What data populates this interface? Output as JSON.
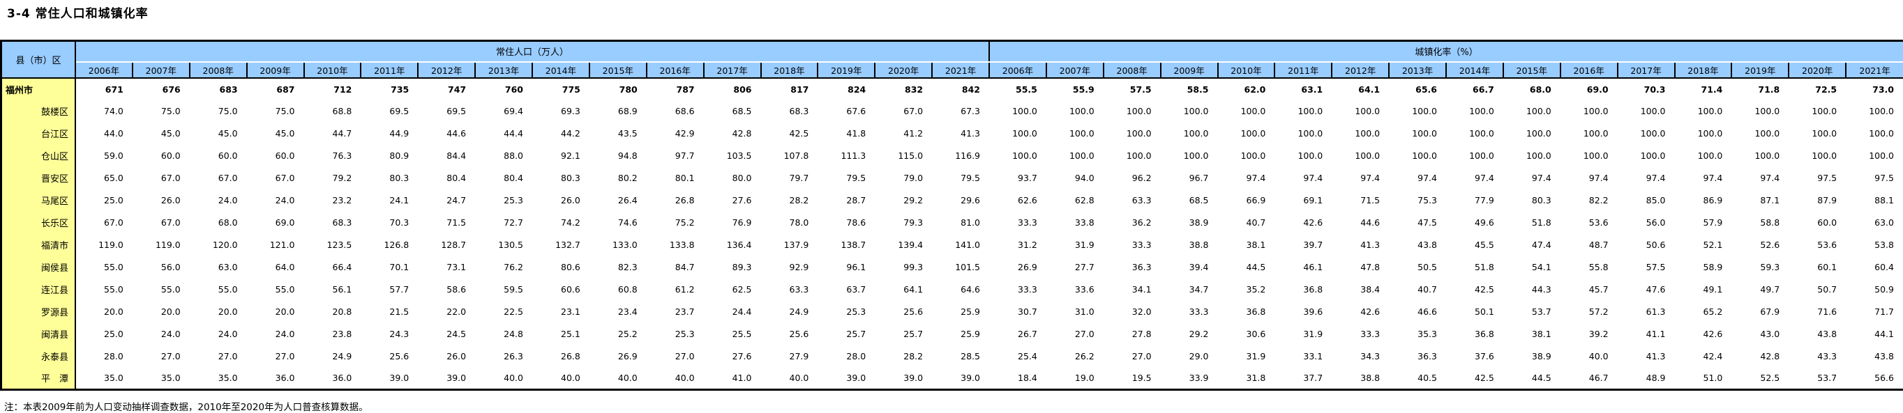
{
  "title": "3-4  常住人口和城镇化率",
  "footnote": "注：本表2009年前为人口变动抽样调查数据，2010年至2020年为人口普查核算数据。",
  "table": {
    "corner_header": "县（市）区",
    "group_headers": [
      "常住人口（万人）",
      "城镇化率（%）"
    ],
    "years": [
      "2006年",
      "2007年",
      "2008年",
      "2009年",
      "2010年",
      "2011年",
      "2012年",
      "2013年",
      "2014年",
      "2015年",
      "2016年",
      "2017年",
      "2018年",
      "2019年",
      "2020年",
      "2021年"
    ],
    "colors": {
      "header_bg": "#99CCFF",
      "label_bg": "#FFFF99",
      "border": "#000000"
    },
    "rows": [
      {
        "label": "福州市",
        "emphasis": true,
        "population": [
          "671",
          "676",
          "683",
          "687",
          "712",
          "735",
          "747",
          "760",
          "775",
          "780",
          "787",
          "806",
          "817",
          "824",
          "832",
          "842"
        ],
        "urbanization": [
          "55.5",
          "55.9",
          "57.5",
          "58.5",
          "62.0",
          "63.1",
          "64.1",
          "65.6",
          "66.7",
          "68.0",
          "69.0",
          "70.3",
          "71.4",
          "71.8",
          "72.5",
          "73.0"
        ]
      },
      {
        "label": "鼓楼区",
        "emphasis": false,
        "population": [
          "74.0",
          "75.0",
          "75.0",
          "75.0",
          "68.8",
          "69.5",
          "69.5",
          "69.4",
          "69.3",
          "68.9",
          "68.6",
          "68.5",
          "68.3",
          "67.6",
          "67.0",
          "67.3"
        ],
        "urbanization": [
          "100.0",
          "100.0",
          "100.0",
          "100.0",
          "100.0",
          "100.0",
          "100.0",
          "100.0",
          "100.0",
          "100.0",
          "100.0",
          "100.0",
          "100.0",
          "100.0",
          "100.0",
          "100.0"
        ]
      },
      {
        "label": "台江区",
        "emphasis": false,
        "population": [
          "44.0",
          "45.0",
          "45.0",
          "45.0",
          "44.7",
          "44.9",
          "44.6",
          "44.4",
          "44.2",
          "43.5",
          "42.9",
          "42.8",
          "42.5",
          "41.8",
          "41.2",
          "41.3"
        ],
        "urbanization": [
          "100.0",
          "100.0",
          "100.0",
          "100.0",
          "100.0",
          "100.0",
          "100.0",
          "100.0",
          "100.0",
          "100.0",
          "100.0",
          "100.0",
          "100.0",
          "100.0",
          "100.0",
          "100.0"
        ]
      },
      {
        "label": "仓山区",
        "emphasis": false,
        "population": [
          "59.0",
          "60.0",
          "60.0",
          "60.0",
          "76.3",
          "80.9",
          "84.4",
          "88.0",
          "92.1",
          "94.8",
          "97.7",
          "103.5",
          "107.8",
          "111.3",
          "115.0",
          "116.9"
        ],
        "urbanization": [
          "100.0",
          "100.0",
          "100.0",
          "100.0",
          "100.0",
          "100.0",
          "100.0",
          "100.0",
          "100.0",
          "100.0",
          "100.0",
          "100.0",
          "100.0",
          "100.0",
          "100.0",
          "100.0"
        ]
      },
      {
        "label": "晋安区",
        "emphasis": false,
        "population": [
          "65.0",
          "67.0",
          "67.0",
          "67.0",
          "79.2",
          "80.3",
          "80.4",
          "80.4",
          "80.3",
          "80.2",
          "80.1",
          "80.0",
          "79.7",
          "79.5",
          "79.0",
          "79.5"
        ],
        "urbanization": [
          "93.7",
          "94.0",
          "96.2",
          "96.7",
          "97.4",
          "97.4",
          "97.4",
          "97.4",
          "97.4",
          "97.4",
          "97.4",
          "97.4",
          "97.4",
          "97.4",
          "97.5",
          "97.5"
        ]
      },
      {
        "label": "马尾区",
        "emphasis": false,
        "population": [
          "25.0",
          "26.0",
          "24.0",
          "24.0",
          "23.2",
          "24.1",
          "24.7",
          "25.3",
          "26.0",
          "26.4",
          "26.8",
          "27.6",
          "28.2",
          "28.7",
          "29.2",
          "29.6"
        ],
        "urbanization": [
          "62.6",
          "62.8",
          "63.3",
          "68.5",
          "66.9",
          "69.1",
          "71.5",
          "75.3",
          "77.9",
          "80.3",
          "82.2",
          "85.0",
          "86.9",
          "87.1",
          "87.9",
          "88.1"
        ]
      },
      {
        "label": "长乐区",
        "emphasis": false,
        "population": [
          "67.0",
          "67.0",
          "68.0",
          "69.0",
          "68.3",
          "70.3",
          "71.5",
          "72.7",
          "74.2",
          "74.6",
          "75.2",
          "76.9",
          "78.0",
          "78.6",
          "79.3",
          "81.0"
        ],
        "urbanization": [
          "33.3",
          "33.8",
          "36.2",
          "38.9",
          "40.7",
          "42.6",
          "44.6",
          "47.5",
          "49.6",
          "51.8",
          "53.6",
          "56.0",
          "57.9",
          "58.8",
          "60.0",
          "63.0"
        ]
      },
      {
        "label": "福清市",
        "emphasis": false,
        "population": [
          "119.0",
          "119.0",
          "120.0",
          "121.0",
          "123.5",
          "126.8",
          "128.7",
          "130.5",
          "132.7",
          "133.0",
          "133.8",
          "136.4",
          "137.9",
          "138.7",
          "139.4",
          "141.0"
        ],
        "urbanization": [
          "31.2",
          "31.9",
          "33.3",
          "38.8",
          "38.1",
          "39.7",
          "41.3",
          "43.8",
          "45.5",
          "47.4",
          "48.7",
          "50.6",
          "52.1",
          "52.6",
          "53.6",
          "53.8"
        ]
      },
      {
        "label": "闽侯县",
        "emphasis": false,
        "population": [
          "55.0",
          "56.0",
          "63.0",
          "64.0",
          "66.4",
          "70.1",
          "73.1",
          "76.2",
          "80.6",
          "82.3",
          "84.7",
          "89.3",
          "92.9",
          "96.1",
          "99.3",
          "101.5"
        ],
        "urbanization": [
          "26.9",
          "27.7",
          "36.3",
          "39.4",
          "44.5",
          "46.1",
          "47.8",
          "50.5",
          "51.8",
          "54.1",
          "55.8",
          "57.5",
          "58.9",
          "59.3",
          "60.1",
          "60.4"
        ]
      },
      {
        "label": "连江县",
        "emphasis": false,
        "population": [
          "55.0",
          "55.0",
          "55.0",
          "55.0",
          "56.1",
          "57.7",
          "58.6",
          "59.5",
          "60.6",
          "60.8",
          "61.2",
          "62.5",
          "63.3",
          "63.7",
          "64.1",
          "64.6"
        ],
        "urbanization": [
          "33.3",
          "33.6",
          "34.1",
          "34.7",
          "35.2",
          "36.8",
          "38.4",
          "40.7",
          "42.5",
          "44.3",
          "45.7",
          "47.6",
          "49.1",
          "49.7",
          "50.7",
          "50.9"
        ]
      },
      {
        "label": "罗源县",
        "emphasis": false,
        "population": [
          "20.0",
          "20.0",
          "20.0",
          "20.0",
          "20.8",
          "21.5",
          "22.0",
          "22.5",
          "23.1",
          "23.4",
          "23.7",
          "24.4",
          "24.9",
          "25.3",
          "25.6",
          "25.9"
        ],
        "urbanization": [
          "30.7",
          "31.0",
          "32.0",
          "33.3",
          "36.8",
          "39.6",
          "42.6",
          "46.6",
          "50.1",
          "53.7",
          "57.2",
          "61.3",
          "65.2",
          "67.9",
          "71.6",
          "71.7"
        ]
      },
      {
        "label": "闽清县",
        "emphasis": false,
        "population": [
          "25.0",
          "24.0",
          "24.0",
          "24.0",
          "23.8",
          "24.3",
          "24.5",
          "24.8",
          "25.1",
          "25.2",
          "25.3",
          "25.5",
          "25.6",
          "25.7",
          "25.7",
          "25.9"
        ],
        "urbanization": [
          "26.7",
          "27.0",
          "27.8",
          "29.2",
          "30.6",
          "31.9",
          "33.3",
          "35.3",
          "36.8",
          "38.1",
          "39.2",
          "41.1",
          "42.6",
          "43.0",
          "43.8",
          "44.1"
        ]
      },
      {
        "label": "永泰县",
        "emphasis": false,
        "population": [
          "28.0",
          "27.0",
          "27.0",
          "27.0",
          "24.9",
          "25.6",
          "26.0",
          "26.3",
          "26.8",
          "26.9",
          "27.0",
          "27.6",
          "27.9",
          "28.0",
          "28.2",
          "28.5"
        ],
        "urbanization": [
          "25.4",
          "26.2",
          "27.0",
          "29.0",
          "31.9",
          "33.1",
          "34.3",
          "36.3",
          "37.6",
          "38.9",
          "40.0",
          "41.3",
          "42.4",
          "42.8",
          "43.3",
          "43.8"
        ]
      },
      {
        "label": "平　潭",
        "emphasis": false,
        "population": [
          "35.0",
          "35.0",
          "35.0",
          "36.0",
          "36.0",
          "39.0",
          "39.0",
          "40.0",
          "40.0",
          "40.0",
          "40.0",
          "41.0",
          "40.0",
          "39.0",
          "39.0",
          "39.0"
        ],
        "urbanization": [
          "18.4",
          "19.0",
          "19.5",
          "33.9",
          "31.8",
          "37.7",
          "38.8",
          "40.5",
          "42.5",
          "44.5",
          "46.7",
          "48.9",
          "51.0",
          "52.5",
          "53.7",
          "56.6"
        ]
      }
    ]
  }
}
